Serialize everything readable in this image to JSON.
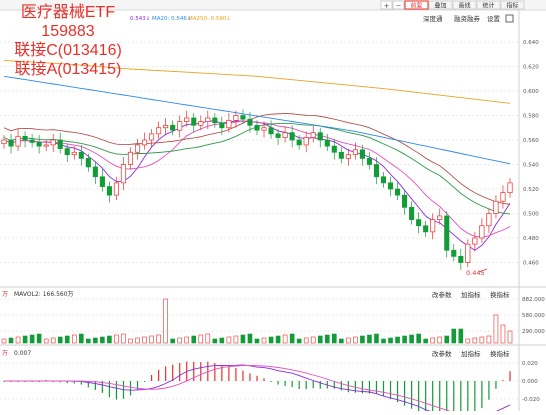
{
  "overlay": {
    "title": "医疗器械ETF",
    "code": "159883",
    "linked_c": "联接C(013416)",
    "linked_a": "联接A(013415)"
  },
  "toolbar": {
    "tabs": [
      "前复",
      "叠加",
      "画线",
      "统计",
      "指标"
    ],
    "active_tab": 0,
    "nav_arrows": [
      "+",
      "−",
      "‹",
      "›"
    ],
    "links": [
      "深度通",
      "融资融券",
      "设置"
    ],
    "ma_readouts": [
      {
        "label": "0.543",
        "arrow": "↓"
      },
      {
        "label": "MA20: 0.546",
        "arrow": "↓"
      },
      {
        "label": "MA250: 0.590",
        "arrow": "↓"
      }
    ]
  },
  "price_axis": {
    "ticks": [
      "0.640",
      "0.620",
      "0.600",
      "0.580",
      "0.560",
      "0.540",
      "0.520",
      "0.500",
      "0.480",
      "0.460"
    ],
    "low_marker": "0.445"
  },
  "volume_panel": {
    "label": "MAVOL2: 166.560万",
    "buttons": [
      "改参数",
      "加指标",
      "换指标"
    ],
    "ticks": [
      "882.000",
      "580.000",
      "290.000"
    ]
  },
  "macd_panel": {
    "label": "0.007",
    "buttons": [
      "改参数",
      "加指标",
      "换指标"
    ],
    "ticks": [
      "0.020",
      "0.000",
      "-0.020"
    ]
  },
  "colors": {
    "up": "#e8302a",
    "down": "#129c37",
    "ma5": "#8a2be2",
    "ma10": "#e64fbf",
    "ma20": "#2b8aea",
    "ma60": "#2f9a48",
    "ma250": "#f0a020",
    "grid": "#ebebeb"
  },
  "chart_data": {
    "type": "candlestick",
    "overlay_text_bound": true,
    "series_close": [
      0.56,
      0.555,
      0.563,
      0.56,
      0.558,
      0.555,
      0.556,
      0.56,
      0.553,
      0.548,
      0.55,
      0.545,
      0.538,
      0.53,
      0.522,
      0.515,
      0.525,
      0.54,
      0.55,
      0.556,
      0.56,
      0.565,
      0.57,
      0.572,
      0.568,
      0.575,
      0.578,
      0.572,
      0.575,
      0.578,
      0.574,
      0.57,
      0.576,
      0.58,
      0.577,
      0.572,
      0.568,
      0.57,
      0.565,
      0.562,
      0.566,
      0.56,
      0.556,
      0.562,
      0.566,
      0.56,
      0.555,
      0.55,
      0.545,
      0.548,
      0.552,
      0.545,
      0.54,
      0.53,
      0.525,
      0.52,
      0.515,
      0.505,
      0.495,
      0.49,
      0.485,
      0.495,
      0.498,
      0.47,
      0.465,
      0.46,
      0.475,
      0.48,
      0.49,
      0.5,
      0.51,
      0.517,
      0.525
    ],
    "ma250": [
      0.625,
      0.622,
      0.618,
      0.615,
      0.612,
      0.607,
      0.602,
      0.596,
      0.59
    ],
    "volume_ticks": [
      "882.000",
      "580.000",
      "290.000"
    ],
    "macd_ticks": [
      "0.020",
      "0.000",
      "-0.020"
    ]
  }
}
